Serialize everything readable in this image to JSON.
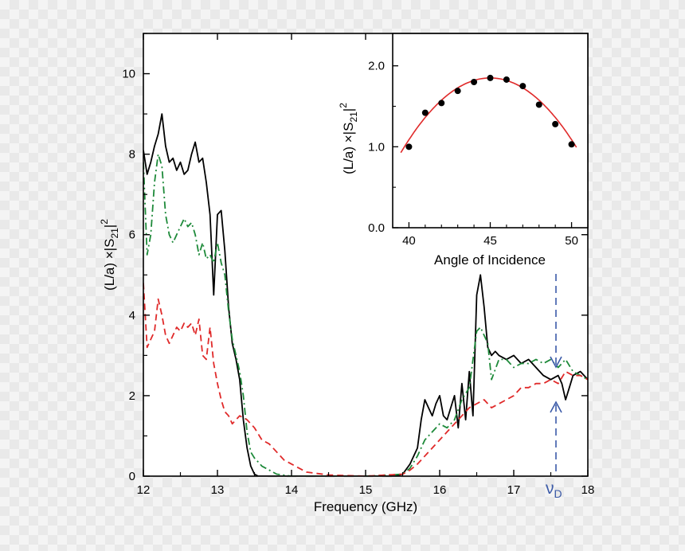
{
  "chart_data": [
    {
      "type": "line",
      "xlabel": "Frequency (GHz)",
      "ylabel": "(L/a) ×|S21|2",
      "xlim": [
        12,
        18
      ],
      "ylim": [
        0,
        11
      ],
      "xticks": [
        12,
        13,
        14,
        15,
        16,
        17,
        18
      ],
      "yticks": [
        0,
        2,
        4,
        6,
        8,
        10
      ],
      "grid": false,
      "series": [
        {
          "color": "#000000",
          "dash": "solid",
          "x": [
            12.0,
            12.05,
            12.1,
            12.15,
            12.2,
            12.25,
            12.3,
            12.35,
            12.4,
            12.45,
            12.5,
            12.55,
            12.6,
            12.65,
            12.7,
            12.75,
            12.8,
            12.85,
            12.9,
            12.95,
            13.0,
            13.05,
            13.1,
            13.15,
            13.2,
            13.25,
            13.3,
            13.35,
            13.4,
            13.45,
            13.5,
            13.55,
            13.6,
            14.0,
            14.5,
            15.0,
            15.4,
            15.5,
            15.6,
            15.7,
            15.75,
            15.8,
            15.85,
            15.9,
            15.95,
            16.0,
            16.05,
            16.1,
            16.15,
            16.2,
            16.25,
            16.3,
            16.35,
            16.4,
            16.45,
            16.5,
            16.55,
            16.6,
            16.65,
            16.7,
            16.75,
            16.8,
            16.9,
            17.0,
            17.1,
            17.2,
            17.3,
            17.4,
            17.5,
            17.6,
            17.65,
            17.7,
            17.75,
            17.8,
            17.9,
            18.0
          ],
          "y": [
            8.1,
            7.5,
            7.8,
            8.2,
            8.5,
            9.0,
            8.2,
            7.8,
            7.9,
            7.6,
            7.8,
            7.5,
            7.6,
            8.0,
            8.3,
            7.8,
            7.9,
            7.3,
            6.5,
            4.5,
            6.5,
            6.6,
            5.6,
            4.2,
            3.3,
            2.9,
            2.4,
            1.4,
            0.7,
            0.25,
            0.05,
            0.0,
            0.0,
            0.0,
            0.0,
            0.0,
            0.0,
            0.05,
            0.3,
            0.7,
            1.4,
            1.9,
            1.7,
            1.5,
            1.8,
            2.0,
            1.5,
            1.4,
            1.7,
            2.0,
            1.2,
            2.3,
            1.4,
            2.6,
            1.5,
            4.5,
            5.0,
            4.2,
            3.2,
            3.0,
            3.1,
            3.0,
            2.9,
            3.0,
            2.8,
            2.9,
            2.7,
            2.5,
            2.4,
            2.5,
            2.3,
            1.9,
            2.2,
            2.5,
            2.6,
            2.4
          ]
        },
        {
          "color": "#1e8a3a",
          "dash": "dash-dot",
          "x": [
            12.0,
            12.05,
            12.1,
            12.15,
            12.2,
            12.25,
            12.3,
            12.35,
            12.4,
            12.45,
            12.5,
            12.55,
            12.6,
            12.65,
            12.7,
            12.75,
            12.8,
            12.85,
            12.9,
            12.95,
            13.0,
            13.05,
            13.1,
            13.15,
            13.2,
            13.25,
            13.3,
            13.35,
            13.4,
            13.45,
            13.5,
            13.55,
            13.6,
            13.65,
            13.7,
            13.8,
            14.0,
            15.0,
            15.5,
            15.6,
            15.7,
            15.8,
            15.9,
            16.0,
            16.1,
            16.2,
            16.3,
            16.4,
            16.5,
            16.55,
            16.6,
            16.65,
            16.7,
            16.8,
            16.9,
            17.0,
            17.1,
            17.2,
            17.3,
            17.4,
            17.5,
            17.6,
            17.7,
            17.8,
            17.9,
            18.0
          ],
          "y": [
            7.8,
            5.5,
            6.0,
            7.3,
            8.0,
            7.7,
            6.5,
            6.0,
            5.8,
            6.0,
            6.2,
            6.4,
            6.2,
            6.3,
            6.0,
            5.5,
            5.8,
            5.4,
            5.5,
            5.3,
            5.8,
            5.3,
            5.0,
            4.1,
            3.4,
            3.0,
            2.6,
            2.0,
            1.1,
            0.6,
            0.45,
            0.35,
            0.25,
            0.2,
            0.15,
            0.05,
            0.0,
            0.0,
            0.05,
            0.2,
            0.5,
            0.9,
            1.1,
            1.3,
            1.2,
            1.4,
            1.9,
            2.2,
            3.6,
            3.7,
            3.5,
            3.3,
            2.4,
            2.9,
            2.9,
            2.7,
            2.8,
            2.8,
            2.9,
            2.8,
            2.9,
            2.7,
            2.9,
            2.6,
            2.5,
            2.4
          ]
        },
        {
          "color": "#e02a2a",
          "dash": "dashed",
          "x": [
            12.0,
            12.05,
            12.1,
            12.15,
            12.2,
            12.25,
            12.3,
            12.35,
            12.4,
            12.45,
            12.5,
            12.55,
            12.6,
            12.65,
            12.7,
            12.75,
            12.8,
            12.85,
            12.9,
            12.95,
            13.0,
            13.05,
            13.1,
            13.15,
            13.2,
            13.3,
            13.4,
            13.5,
            13.6,
            13.7,
            13.8,
            13.9,
            14.0,
            14.2,
            14.5,
            15.0,
            15.5,
            15.6,
            15.7,
            15.8,
            15.9,
            16.0,
            16.1,
            16.2,
            16.3,
            16.4,
            16.5,
            16.6,
            16.7,
            16.8,
            16.9,
            17.0,
            17.1,
            17.2,
            17.3,
            17.4,
            17.5,
            17.6,
            17.7,
            17.8,
            17.9,
            18.0
          ],
          "y": [
            4.8,
            3.2,
            3.4,
            3.6,
            4.4,
            4.0,
            3.5,
            3.3,
            3.5,
            3.7,
            3.6,
            3.8,
            3.7,
            3.8,
            3.5,
            3.9,
            3.0,
            2.9,
            3.7,
            2.8,
            2.3,
            1.9,
            1.6,
            1.5,
            1.3,
            1.5,
            1.4,
            1.2,
            0.9,
            0.8,
            0.6,
            0.4,
            0.3,
            0.1,
            0.03,
            0.0,
            0.05,
            0.15,
            0.3,
            0.5,
            0.7,
            0.9,
            1.1,
            1.3,
            1.5,
            1.7,
            1.8,
            1.9,
            1.7,
            1.8,
            1.9,
            2.0,
            2.2,
            2.2,
            2.3,
            2.3,
            2.4,
            2.3,
            2.6,
            2.5,
            2.5,
            2.4
          ]
        }
      ],
      "annotations": [
        {
          "text": "ν",
          "subscript": "D",
          "x": 17.6,
          "color": "#3b5aa8"
        }
      ]
    },
    {
      "type": "scatter",
      "xlabel": "Angle of Incidence",
      "ylabel": "(L/a) ×|S21|2",
      "xlim": [
        39,
        51
      ],
      "ylim": [
        0,
        2.4
      ],
      "xticks": [
        40,
        45,
        50
      ],
      "yticks": [
        0.0,
        1.0,
        2.0
      ],
      "grid": false,
      "points": {
        "x": [
          40,
          41,
          42,
          43,
          44,
          45,
          46,
          47,
          48,
          49,
          50
        ],
        "y": [
          1.0,
          1.42,
          1.54,
          1.69,
          1.8,
          1.85,
          1.83,
          1.75,
          1.52,
          1.28,
          1.03
        ]
      },
      "fit": {
        "color": "#e02a2a",
        "x_range": [
          39.5,
          50.3
        ],
        "peak_x": 45,
        "peak_y": 1.85,
        "curvature": 0.0305
      }
    }
  ],
  "labels": {
    "main_xticks": [
      "12",
      "13",
      "14",
      "15",
      "16",
      "17",
      "18"
    ],
    "main_yticks": [
      "0",
      "2",
      "4",
      "6",
      "8",
      "10"
    ],
    "inset_xticks": [
      "40",
      "45",
      "50"
    ],
    "inset_yticks": [
      "0.0",
      "1.0",
      "2.0"
    ],
    "main_xlabel": "Frequency (GHz)",
    "inset_xlabel": "Angle of Incidence",
    "ylabel_pre": "(L/a) ×|S",
    "ylabel_sub": "21",
    "ylabel_bar": "|",
    "ylabel_sup": "2",
    "nu": "ν",
    "nu_sub": "D"
  }
}
